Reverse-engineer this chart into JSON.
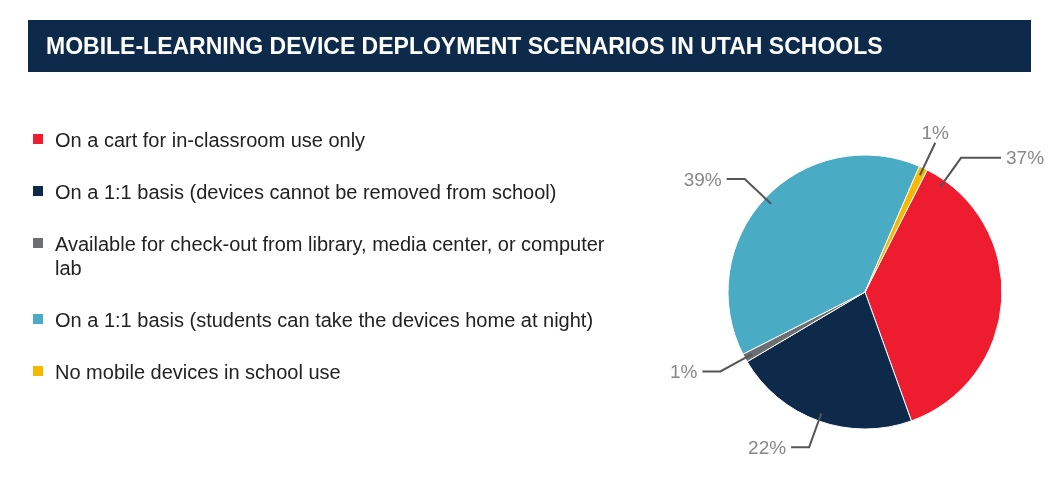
{
  "chart_data": {
    "type": "pie",
    "title": "MOBILE-LEARNING DEVICE DEPLOYMENT SCENARIOS IN UTAH SCHOOLS",
    "categories": [
      "On a cart for in-classroom use only",
      "On a 1:1 basis (devices cannot be removed from school)",
      "Available for check-out from library, media center, or computer lab",
      "On a 1:1 basis (students can take the devices home at night)",
      "No mobile devices in school use"
    ],
    "values": [
      37,
      22,
      1,
      39,
      1
    ],
    "colors": [
      "#ed1c2e",
      "#0d2a4a",
      "#6d6e71",
      "#4aabc4",
      "#f6b800"
    ],
    "value_labels": [
      "37%",
      "22%",
      "1%",
      "39%",
      "1%"
    ],
    "legend": "left"
  }
}
